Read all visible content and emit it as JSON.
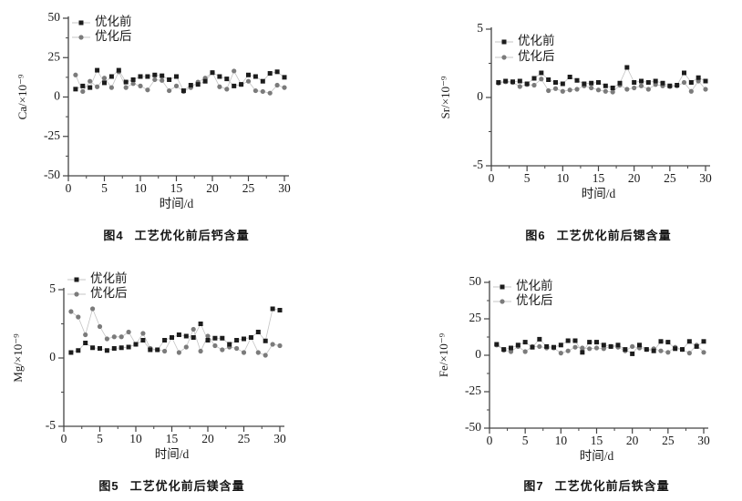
{
  "page": {
    "background": "#ffffff"
  },
  "colors": {
    "before_marker": "#1c1c1c",
    "after_marker": "#7b7b7b",
    "connector_line": "#c4c4c4",
    "axis": "#444444",
    "text": "#1a1a1a"
  },
  "chart_data": [
    {
      "id": "ca",
      "type": "scatter",
      "position": "top-left",
      "caption": {
        "fig": "图4",
        "text": "工艺优化前后钙含量"
      },
      "xlabel": "时间/d",
      "ylabel": "Ca/×10⁻⁹",
      "xlim": [
        0,
        30
      ],
      "ylim": [
        -50,
        50
      ],
      "xticks": [
        0,
        5,
        10,
        15,
        20,
        25,
        30
      ],
      "yticks": [
        -50,
        -25,
        0,
        25,
        50
      ],
      "x_minor_step": 2.5,
      "y_minor": [
        -37.5,
        -12.5,
        12.5,
        37.5
      ],
      "grid": false,
      "legend_position": "top-left-inside",
      "x": [
        1,
        2,
        3,
        4,
        5,
        6,
        7,
        8,
        9,
        10,
        11,
        12,
        13,
        14,
        15,
        16,
        17,
        18,
        19,
        20,
        21,
        22,
        23,
        24,
        25,
        26,
        27,
        28,
        29,
        30
      ],
      "series": [
        {
          "name": "优化前",
          "marker": "square",
          "color": "#1c1c1c",
          "values": [
            5,
            7,
            6,
            17,
            9,
            13,
            17,
            9.5,
            11,
            13,
            13,
            14,
            13.5,
            11,
            13,
            4,
            7.5,
            8,
            10,
            15.5,
            13,
            11.5,
            7,
            8,
            14,
            13,
            10,
            15,
            16,
            12.5
          ]
        },
        {
          "name": "优化后",
          "marker": "circle",
          "color": "#7b7b7b",
          "values": [
            14,
            3.5,
            10,
            6.5,
            12,
            6,
            16,
            6,
            8.5,
            7,
            4.5,
            11,
            10.5,
            4,
            7,
            3.5,
            6,
            9.5,
            12,
            15.5,
            6.5,
            5,
            16.5,
            8,
            10,
            4,
            3.5,
            2.5,
            7.5,
            6
          ]
        }
      ]
    },
    {
      "id": "sr",
      "type": "scatter",
      "position": "top-right",
      "caption": {
        "fig": "图6",
        "text": "工艺优化前后锶含量"
      },
      "xlabel": "时间/d",
      "ylabel": "Sr/×10⁻⁹",
      "xlim": [
        0,
        30
      ],
      "ylim": [
        -5,
        5
      ],
      "xticks": [
        0,
        5,
        10,
        15,
        20,
        25,
        30
      ],
      "yticks": [
        -5,
        0,
        5
      ],
      "x_minor_step": 2.5,
      "y_minor": [
        -2.5,
        2.5
      ],
      "grid": false,
      "legend_position": "top-left-inside",
      "x": [
        1,
        2,
        3,
        4,
        5,
        6,
        7,
        8,
        9,
        10,
        11,
        12,
        13,
        14,
        15,
        16,
        17,
        18,
        19,
        20,
        21,
        22,
        23,
        24,
        25,
        26,
        27,
        28,
        29,
        30
      ],
      "series": [
        {
          "name": "优化前",
          "marker": "square",
          "color": "#1c1c1c",
          "values": [
            1.1,
            1.2,
            1.15,
            1.2,
            1.0,
            1.4,
            1.8,
            1.3,
            1.1,
            1.0,
            1.5,
            1.25,
            1.0,
            1.05,
            1.1,
            0.85,
            0.7,
            1.05,
            2.2,
            1.1,
            1.2,
            1.1,
            1.2,
            1.05,
            0.85,
            0.9,
            1.8,
            1.1,
            1.45,
            1.2
          ]
        },
        {
          "name": "优化后",
          "marker": "circle",
          "color": "#7b7b7b",
          "values": [
            1.05,
            1.15,
            1.1,
            0.8,
            0.95,
            0.9,
            1.35,
            0.5,
            0.65,
            0.45,
            0.55,
            0.6,
            0.85,
            0.7,
            0.55,
            0.45,
            0.4,
            0.9,
            0.6,
            0.7,
            0.85,
            0.6,
            0.95,
            0.85,
            0.8,
            0.85,
            1.1,
            0.45,
            1.2,
            0.6
          ]
        }
      ]
    },
    {
      "id": "mg",
      "type": "scatter",
      "position": "bottom-left",
      "caption": {
        "fig": "图5",
        "text": "工艺优化前后镁含量"
      },
      "xlabel": "时间/d",
      "ylabel": "Mg/×10⁻⁹",
      "xlim": [
        0,
        30
      ],
      "ylim": [
        -5,
        5
      ],
      "xticks": [
        0,
        5,
        10,
        15,
        20,
        25,
        30
      ],
      "yticks": [
        -5,
        0,
        5
      ],
      "x_minor_step": 2.5,
      "y_minor": [
        -2.5,
        2.5
      ],
      "grid": false,
      "legend_position": "top-left-inside",
      "x": [
        1,
        2,
        3,
        4,
        5,
        6,
        7,
        8,
        9,
        10,
        11,
        12,
        13,
        14,
        15,
        16,
        17,
        18,
        19,
        20,
        21,
        22,
        23,
        24,
        25,
        26,
        27,
        28,
        29,
        30
      ],
      "series": [
        {
          "name": "优化前",
          "marker": "square",
          "color": "#1c1c1c",
          "values": [
            0.4,
            0.55,
            1.1,
            0.75,
            0.7,
            0.55,
            0.7,
            0.75,
            0.8,
            1.0,
            1.3,
            0.6,
            0.6,
            1.3,
            1.5,
            1.7,
            1.6,
            1.5,
            2.5,
            1.3,
            1.45,
            1.45,
            1.0,
            1.3,
            1.4,
            1.5,
            1.9,
            1.25,
            3.6,
            3.5
          ]
        },
        {
          "name": "优化后",
          "marker": "circle",
          "color": "#7b7b7b",
          "values": [
            3.4,
            3.0,
            1.7,
            3.6,
            2.3,
            1.4,
            1.55,
            1.55,
            1.9,
            1.0,
            1.8,
            0.7,
            0.6,
            0.5,
            1.5,
            0.4,
            0.8,
            2.1,
            0.5,
            1.6,
            0.9,
            0.6,
            0.8,
            0.7,
            0.4,
            1.5,
            0.4,
            0.2,
            1.0,
            0.9
          ]
        }
      ]
    },
    {
      "id": "fe",
      "type": "scatter",
      "position": "bottom-right",
      "caption": {
        "fig": "图7",
        "text": "工艺优化前后铁含量"
      },
      "xlabel": "时间/d",
      "ylabel": "Fe/×10⁻⁹",
      "xlim": [
        0,
        30
      ],
      "ylim": [
        -50,
        50
      ],
      "xticks": [
        0,
        5,
        10,
        15,
        20,
        25,
        30
      ],
      "yticks": [
        -50,
        -25,
        0,
        25,
        50
      ],
      "x_minor_step": 2.5,
      "y_minor": [
        -37.5,
        -12.5,
        12.5,
        37.5
      ],
      "grid": false,
      "legend_position": "top-left-inside",
      "x": [
        1,
        2,
        3,
        4,
        5,
        6,
        7,
        8,
        9,
        10,
        11,
        12,
        13,
        14,
        15,
        16,
        17,
        18,
        19,
        20,
        21,
        22,
        23,
        24,
        25,
        26,
        27,
        28,
        29,
        30
      ],
      "series": [
        {
          "name": "优化前",
          "marker": "square",
          "color": "#1c1c1c",
          "values": [
            7.5,
            4,
            5,
            7,
            9,
            5.5,
            11,
            6,
            5.5,
            7,
            10,
            10,
            2,
            9,
            9,
            7,
            6,
            7,
            4,
            1,
            7,
            4,
            3,
            9.5,
            9,
            4.5,
            4,
            9.5,
            6,
            9.5
          ]
        },
        {
          "name": "优化后",
          "marker": "circle",
          "color": "#7b7b7b",
          "values": [
            7,
            3.5,
            2.5,
            6,
            2.5,
            6,
            6,
            5,
            5,
            1.5,
            3,
            5.5,
            5,
            4.5,
            5,
            4.5,
            6,
            5.5,
            3,
            6,
            5,
            4,
            4.5,
            3,
            2,
            5.5,
            4,
            1.5,
            7,
            2
          ]
        }
      ]
    }
  ]
}
